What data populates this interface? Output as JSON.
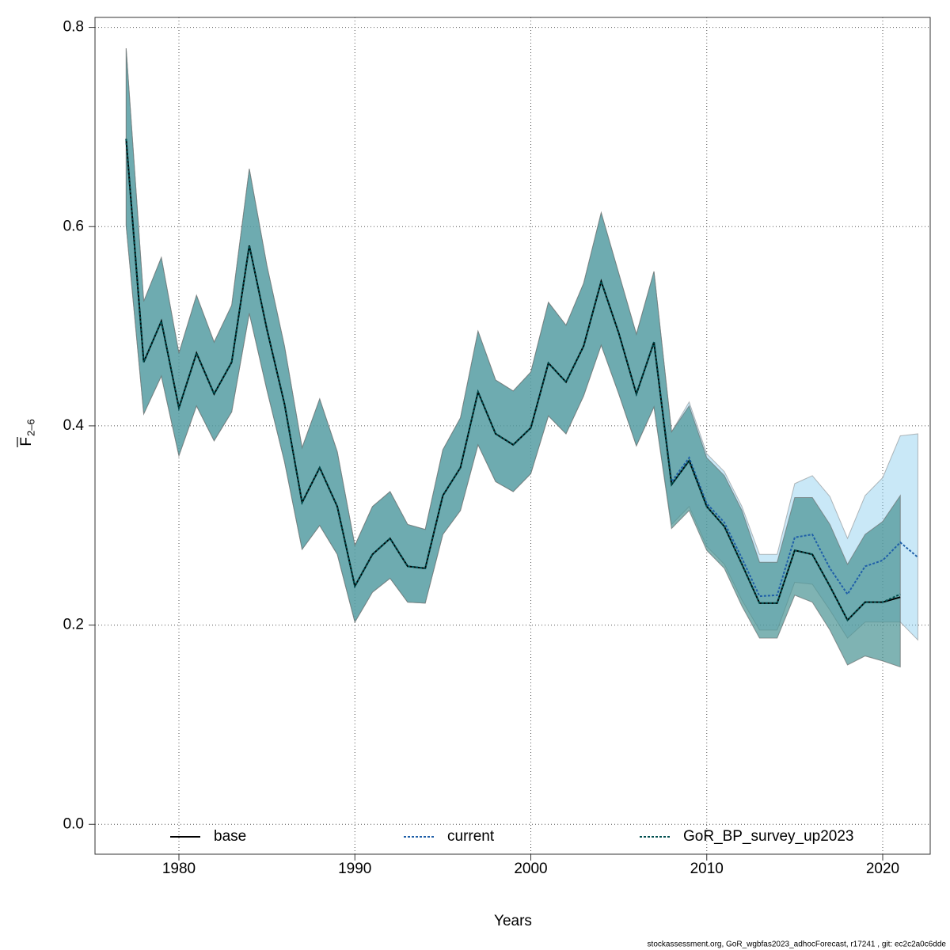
{
  "chart_data": {
    "type": "line",
    "xlabel": "Years",
    "ylabel": "F",
    "ylabel_sub": "2–6",
    "footnote": "stockassessment.org, GoR_wgbfas2023_adhocForecast, r17241 , git: ec2c2a0c6dde",
    "xlim": [
      1975.23,
      2022.7
    ],
    "ylim": [
      -0.03,
      0.81
    ],
    "xticks": [
      1980,
      1990,
      2000,
      2010,
      2020
    ],
    "yticks": [
      {
        "value": 0,
        "label": "0.0"
      },
      0.2,
      0.4,
      0.6,
      0.8
    ],
    "grid": true,
    "legend": "bottom",
    "series": [
      {
        "name": "current",
        "color": "#1f5fa8",
        "band_color": "#87cdee",
        "line_style": "dotted",
        "x": [
          1977,
          1978,
          1979,
          1980,
          1981,
          1982,
          1983,
          1984,
          1985,
          1986,
          1987,
          1988,
          1989,
          1990,
          1991,
          1992,
          1993,
          1994,
          1995,
          1996,
          1997,
          1998,
          1999,
          2000,
          2001,
          2002,
          2003,
          2004,
          2005,
          2006,
          2007,
          2008,
          2009,
          2010,
          2011,
          2012,
          2013,
          2014,
          2015,
          2016,
          2017,
          2018,
          2019,
          2020,
          2021,
          2022
        ],
        "values": [
          0.688,
          0.464,
          0.505,
          0.418,
          0.473,
          0.432,
          0.464,
          0.581,
          0.497,
          0.422,
          0.323,
          0.358,
          0.319,
          0.239,
          0.271,
          0.287,
          0.259,
          0.257,
          0.33,
          0.358,
          0.434,
          0.392,
          0.381,
          0.398,
          0.463,
          0.444,
          0.48,
          0.545,
          0.493,
          0.432,
          0.484,
          0.344,
          0.368,
          0.322,
          0.303,
          0.267,
          0.229,
          0.23,
          0.288,
          0.291,
          0.257,
          0.231,
          0.259,
          0.265,
          0.283,
          0.268
        ],
        "upper": [
          0.779,
          0.525,
          0.569,
          0.473,
          0.531,
          0.484,
          0.521,
          0.658,
          0.561,
          0.48,
          0.378,
          0.427,
          0.374,
          0.28,
          0.319,
          0.334,
          0.301,
          0.296,
          0.376,
          0.408,
          0.495,
          0.446,
          0.435,
          0.454,
          0.524,
          0.501,
          0.543,
          0.614,
          0.553,
          0.492,
          0.555,
          0.394,
          0.424,
          0.372,
          0.354,
          0.319,
          0.271,
          0.271,
          0.342,
          0.35,
          0.329,
          0.287,
          0.33,
          0.348,
          0.39,
          0.392
        ],
        "lower": [
          0.601,
          0.412,
          0.45,
          0.37,
          0.42,
          0.385,
          0.414,
          0.513,
          0.436,
          0.364,
          0.276,
          0.3,
          0.271,
          0.203,
          0.233,
          0.247,
          0.223,
          0.222,
          0.291,
          0.315,
          0.381,
          0.344,
          0.334,
          0.352,
          0.41,
          0.392,
          0.43,
          0.481,
          0.432,
          0.38,
          0.419,
          0.301,
          0.319,
          0.279,
          0.261,
          0.225,
          0.195,
          0.195,
          0.243,
          0.241,
          0.215,
          0.187,
          0.203,
          0.203,
          0.203,
          0.185
        ]
      },
      {
        "name": "base",
        "color": "#000000",
        "band_color": "#9a9a9a",
        "line_style": "solid",
        "x": [
          1977,
          1978,
          1979,
          1980,
          1981,
          1982,
          1983,
          1984,
          1985,
          1986,
          1987,
          1988,
          1989,
          1990,
          1991,
          1992,
          1993,
          1994,
          1995,
          1996,
          1997,
          1998,
          1999,
          2000,
          2001,
          2002,
          2003,
          2004,
          2005,
          2006,
          2007,
          2008,
          2009,
          2010,
          2011,
          2012,
          2013,
          2014,
          2015,
          2016,
          2017,
          2018,
          2019,
          2020,
          2021
        ],
        "values": [
          0.688,
          0.464,
          0.505,
          0.418,
          0.473,
          0.432,
          0.464,
          0.581,
          0.497,
          0.422,
          0.323,
          0.358,
          0.319,
          0.239,
          0.271,
          0.287,
          0.259,
          0.257,
          0.33,
          0.358,
          0.434,
          0.392,
          0.381,
          0.398,
          0.463,
          0.444,
          0.48,
          0.545,
          0.493,
          0.432,
          0.484,
          0.341,
          0.365,
          0.319,
          0.299,
          0.261,
          0.222,
          0.222,
          0.275,
          0.271,
          0.239,
          0.205,
          0.223,
          0.223,
          0.228
        ],
        "upper": [
          0.779,
          0.525,
          0.569,
          0.473,
          0.531,
          0.484,
          0.521,
          0.658,
          0.561,
          0.48,
          0.378,
          0.427,
          0.374,
          0.28,
          0.319,
          0.334,
          0.301,
          0.296,
          0.376,
          0.408,
          0.495,
          0.446,
          0.435,
          0.454,
          0.524,
          0.501,
          0.543,
          0.614,
          0.553,
          0.492,
          0.555,
          0.394,
          0.42,
          0.368,
          0.35,
          0.315,
          0.263,
          0.263,
          0.328,
          0.328,
          0.301,
          0.261,
          0.291,
          0.304,
          0.33
        ],
        "lower": [
          0.601,
          0.412,
          0.45,
          0.37,
          0.42,
          0.385,
          0.414,
          0.513,
          0.436,
          0.364,
          0.276,
          0.3,
          0.271,
          0.203,
          0.233,
          0.247,
          0.223,
          0.222,
          0.291,
          0.315,
          0.381,
          0.344,
          0.334,
          0.352,
          0.41,
          0.392,
          0.43,
          0.481,
          0.432,
          0.38,
          0.419,
          0.297,
          0.315,
          0.275,
          0.257,
          0.219,
          0.187,
          0.187,
          0.23,
          0.223,
          0.195,
          0.16,
          0.169,
          0.164,
          0.158
        ]
      },
      {
        "name": "GoR_BP_survey_up2023",
        "color": "#004f4f",
        "band_color": "#1a8f8f",
        "line_style": "dotted",
        "x": [
          1977,
          1978,
          1979,
          1980,
          1981,
          1982,
          1983,
          1984,
          1985,
          1986,
          1987,
          1988,
          1989,
          1990,
          1991,
          1992,
          1993,
          1994,
          1995,
          1996,
          1997,
          1998,
          1999,
          2000,
          2001,
          2002,
          2003,
          2004,
          2005,
          2006,
          2007,
          2008,
          2009,
          2010,
          2011,
          2012,
          2013,
          2014,
          2015,
          2016,
          2017,
          2018,
          2019,
          2020,
          2021
        ],
        "values": [
          0.688,
          0.464,
          0.505,
          0.418,
          0.473,
          0.432,
          0.464,
          0.581,
          0.497,
          0.422,
          0.323,
          0.358,
          0.319,
          0.239,
          0.271,
          0.287,
          0.259,
          0.257,
          0.33,
          0.358,
          0.434,
          0.392,
          0.381,
          0.398,
          0.463,
          0.444,
          0.48,
          0.545,
          0.493,
          0.432,
          0.484,
          0.341,
          0.365,
          0.319,
          0.299,
          0.261,
          0.222,
          0.222,
          0.275,
          0.271,
          0.239,
          0.205,
          0.223,
          0.223,
          0.231
        ],
        "upper": [
          0.779,
          0.525,
          0.569,
          0.473,
          0.531,
          0.484,
          0.521,
          0.658,
          0.561,
          0.48,
          0.378,
          0.427,
          0.374,
          0.28,
          0.319,
          0.334,
          0.301,
          0.296,
          0.376,
          0.408,
          0.495,
          0.446,
          0.435,
          0.454,
          0.524,
          0.501,
          0.543,
          0.614,
          0.553,
          0.492,
          0.555,
          0.394,
          0.42,
          0.368,
          0.35,
          0.315,
          0.263,
          0.263,
          0.328,
          0.328,
          0.301,
          0.261,
          0.291,
          0.304,
          0.33
        ],
        "lower": [
          0.601,
          0.412,
          0.45,
          0.37,
          0.42,
          0.385,
          0.414,
          0.513,
          0.436,
          0.364,
          0.276,
          0.3,
          0.271,
          0.203,
          0.233,
          0.247,
          0.223,
          0.222,
          0.291,
          0.315,
          0.381,
          0.344,
          0.334,
          0.352,
          0.41,
          0.392,
          0.43,
          0.481,
          0.432,
          0.38,
          0.419,
          0.297,
          0.315,
          0.275,
          0.257,
          0.219,
          0.187,
          0.187,
          0.23,
          0.223,
          0.195,
          0.16,
          0.169,
          0.164,
          0.158
        ]
      }
    ]
  }
}
